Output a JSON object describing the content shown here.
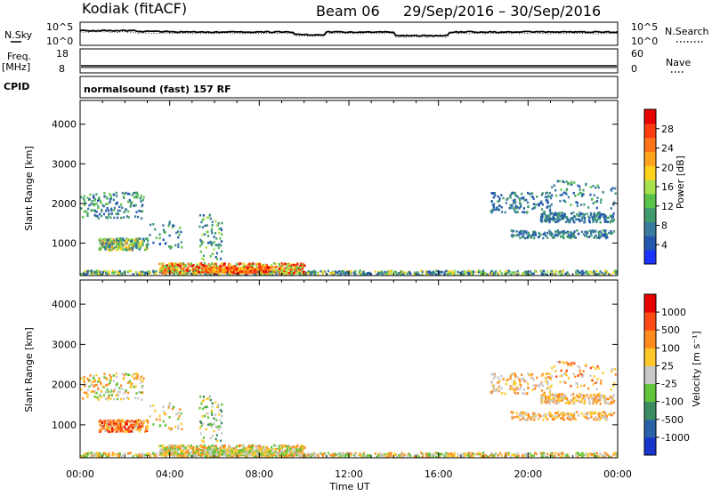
{
  "header": {
    "station": "Kodiak (fitACF)",
    "beam": "Beam 06",
    "date_range": "29/Sep/2016 – 30/Sep/2016"
  },
  "strip1": {
    "left_label": "N.Sky",
    "right_label": "N.Search",
    "left_ticks": [
      "10^5",
      "10^0"
    ],
    "right_ticks": [
      "10^5",
      "10^0"
    ]
  },
  "strip2": {
    "left_label": "Freq.",
    "left_unit": "[MHz]",
    "right_label": "Nave",
    "left_ticks": [
      "18",
      "8"
    ],
    "right_ticks": [
      "60",
      "0"
    ]
  },
  "cpid": {
    "label": "CPID",
    "value": "normalsound (fast) 157 RF"
  },
  "chart_data": [
    {
      "type": "heatmap",
      "name": "power",
      "ylabel": "Slant Range [km]",
      "xlabel": "Time UT",
      "x_ticks": [
        "00:00",
        "04:00",
        "08:00",
        "12:00",
        "16:00",
        "20:00",
        "00:00"
      ],
      "y_ticks": [
        1000,
        2000,
        3000,
        4000
      ],
      "ylim": [
        180,
        4600
      ],
      "xlim_hours": [
        0,
        24
      ],
      "colorbar": {
        "label": "Power [dB]",
        "ticks": [
          4,
          8,
          12,
          16,
          20,
          24,
          28
        ],
        "range": [
          0,
          32
        ],
        "colors": [
          "#1a33ff",
          "#2357b0",
          "#3a7ba0",
          "#3f9a6e",
          "#59c24a",
          "#a7e04a",
          "#ffd21c",
          "#ffa41c",
          "#ff7419",
          "#ff3b12",
          "#e80000"
        ]
      }
    },
    {
      "type": "heatmap",
      "name": "velocity",
      "ylabel": "Slant Range [km]",
      "xlabel": "Time UT",
      "x_ticks": [
        "00:00",
        "04:00",
        "08:00",
        "12:00",
        "16:00",
        "20:00",
        "00:00"
      ],
      "y_ticks": [
        1000,
        2000,
        3000,
        4000
      ],
      "ylim": [
        180,
        4600
      ],
      "xlim_hours": [
        0,
        24
      ],
      "colorbar": {
        "label": "Velocity [m s⁻¹]",
        "tick_labels": [
          "1000",
          "500",
          "100",
          "25",
          "-25",
          "-100",
          "-500",
          "-1000"
        ],
        "colors": [
          "#1836cc",
          "#2a62a8",
          "#3c8c62",
          "#62c43a",
          "#c8c8c8",
          "#ffc82a",
          "#ff8a1e",
          "#ff4a14",
          "#e80000"
        ]
      }
    }
  ]
}
